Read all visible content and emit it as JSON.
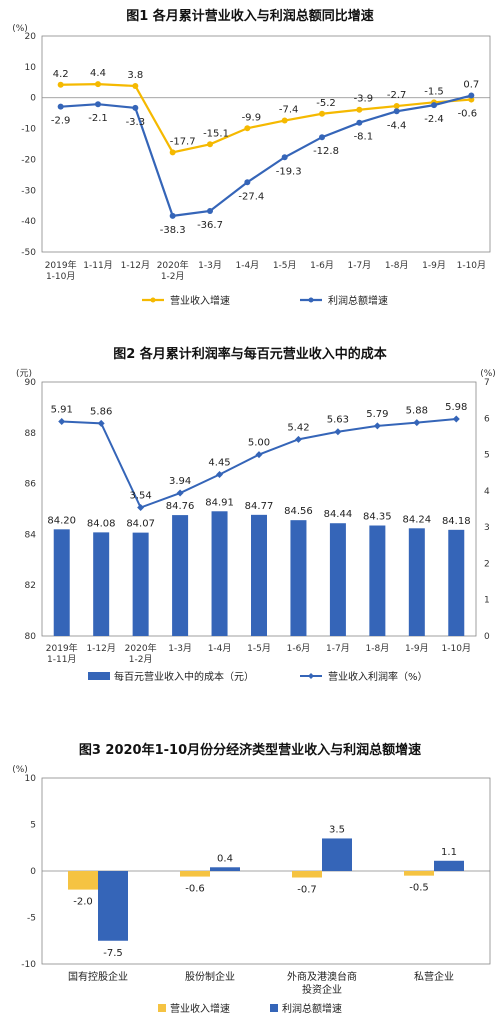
{
  "chart_data": [
    {
      "type": "line",
      "title": "图1  各月累计营业收入与利润总额同比增速",
      "ylabel": "(%)",
      "ylim": [
        -50,
        20
      ],
      "yticks": [
        20,
        10,
        0,
        -10,
        -20,
        -30,
        -40,
        -50
      ],
      "categories": [
        "2019年1-10月",
        "1-11月",
        "1-12月",
        "2020年1-2月",
        "1-3月",
        "1-4月",
        "1-5月",
        "1-6月",
        "1-7月",
        "1-8月",
        "1-9月",
        "1-10月"
      ],
      "category_lines": [
        [
          "2019年",
          "1-10月"
        ],
        [
          "1-11月"
        ],
        [
          "1-12月"
        ],
        [
          "2020年",
          "1-2月"
        ],
        [
          "1-3月"
        ],
        [
          "1-4月"
        ],
        [
          "1-5月"
        ],
        [
          "1-6月"
        ],
        [
          "1-7月"
        ],
        [
          "1-8月"
        ],
        [
          "1-9月"
        ],
        [
          "1-10月"
        ]
      ],
      "series": [
        {
          "name": "营业收入增速",
          "color": "#F5B900",
          "values": [
            4.2,
            4.4,
            3.8,
            -17.7,
            -15.1,
            -9.9,
            -7.4,
            -5.2,
            -3.9,
            -2.7,
            -1.5,
            -0.6
          ]
        },
        {
          "name": "利润总额增速",
          "color": "#3565B8",
          "values": [
            -2.9,
            -2.1,
            -3.3,
            -38.3,
            -36.7,
            -27.4,
            -19.3,
            -12.8,
            -8.1,
            -4.4,
            -2.4,
            0.7
          ]
        }
      ],
      "legend_position": "bottom"
    },
    {
      "type": "bar+line",
      "title": "图2  各月累计利润率与每百元营业收入中的成本",
      "ylabel_left": "(元)",
      "ylabel_right": "(%)",
      "ylim_left": [
        80,
        90
      ],
      "yticks_left": [
        90,
        88,
        86,
        84,
        82,
        80
      ],
      "ylim_right": [
        0,
        7
      ],
      "yticks_right": [
        7,
        6,
        5,
        4,
        3,
        2,
        1,
        0
      ],
      "categories": [
        "2019年1-11月",
        "1-12月",
        "2020年1-2月",
        "1-3月",
        "1-4月",
        "1-5月",
        "1-6月",
        "1-7月",
        "1-8月",
        "1-9月",
        "1-10月"
      ],
      "category_lines": [
        [
          "2019年",
          "1-11月"
        ],
        [
          "1-12月"
        ],
        [
          "2020年",
          "1-2月"
        ],
        [
          "1-3月"
        ],
        [
          "1-4月"
        ],
        [
          "1-5月"
        ],
        [
          "1-6月"
        ],
        [
          "1-7月"
        ],
        [
          "1-8月"
        ],
        [
          "1-9月"
        ],
        [
          "1-10月"
        ]
      ],
      "bar_series": {
        "name": "每百元营业收入中的成本（元）",
        "color": "#3565B8",
        "values": [
          84.2,
          84.08,
          84.07,
          84.76,
          84.91,
          84.77,
          84.56,
          84.44,
          84.35,
          84.24,
          84.18
        ],
        "labels": [
          "84.20",
          "84.08",
          "84.07",
          "84.76",
          "84.91",
          "84.77",
          "84.56",
          "84.44",
          "84.35",
          "84.24",
          "84.18"
        ]
      },
      "line_series": {
        "name": "营业收入利润率（%）",
        "color": "#3565B8",
        "values": [
          5.91,
          5.86,
          3.54,
          3.94,
          4.45,
          5.0,
          5.42,
          5.63,
          5.79,
          5.88,
          5.98
        ],
        "labels": [
          "5.91",
          "5.86",
          "3.54",
          "3.94",
          "4.45",
          "5.00",
          "5.42",
          "5.63",
          "5.79",
          "5.88",
          "5.98"
        ]
      },
      "legend_position": "bottom"
    },
    {
      "type": "bar",
      "title": "图3  2020年1-10月份分经济类型营业收入与利润总额增速",
      "ylabel": "(%)",
      "ylim": [
        -10,
        10
      ],
      "yticks": [
        10,
        5,
        0,
        -5,
        -10
      ],
      "categories": [
        "国有控股企业",
        "股份制企业",
        "外商及港澳台商投资企业",
        "私营企业"
      ],
      "category_lines": [
        [
          "国有控股企业"
        ],
        [
          "股份制企业"
        ],
        [
          "外商及港澳台商",
          "投资企业"
        ],
        [
          "私营企业"
        ]
      ],
      "series": [
        {
          "name": "营业收入增速",
          "color": "#F5C342",
          "values": [
            -2.0,
            -0.6,
            -0.7,
            -0.5
          ]
        },
        {
          "name": "利润总额增速",
          "color": "#3565B8",
          "values": [
            -7.5,
            0.4,
            3.5,
            1.1
          ]
        }
      ],
      "legend_position": "bottom"
    }
  ]
}
